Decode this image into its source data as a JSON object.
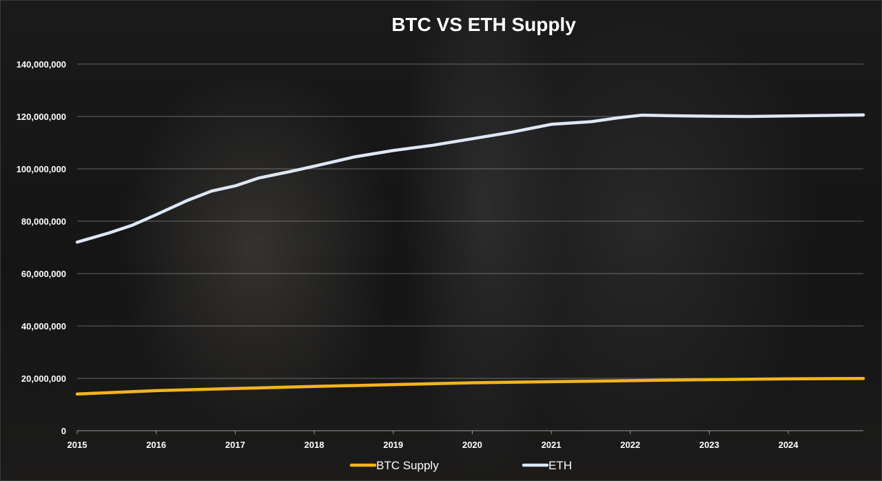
{
  "chart_data": {
    "type": "line",
    "title": "BTC VS ETH Supply",
    "xlabel": "",
    "ylabel": "",
    "xlim": [
      2015.0,
      2024.95
    ],
    "ylim": [
      0,
      140000000
    ],
    "grid": true,
    "legend_position": "bottom",
    "y_ticks": [
      "0",
      "20,000,000",
      "40,000,000",
      "60,000,000",
      "80,000,000",
      "100,000,000",
      "120,000,000",
      "140,000,000"
    ],
    "x_ticks": [
      "2015",
      "2016",
      "2017",
      "2018",
      "2019",
      "2020",
      "2021",
      "2022",
      "2023",
      "2024"
    ],
    "series": [
      {
        "name": "BTC Supply",
        "color": "#f5b41d",
        "x": [
          2015.0,
          2016.0,
          2017.0,
          2018.0,
          2019.0,
          2020.0,
          2021.0,
          2022.0,
          2023.0,
          2024.0,
          2024.95
        ],
        "y": [
          14000000,
          15300000,
          16100000,
          16900000,
          17600000,
          18300000,
          18700000,
          19100000,
          19500000,
          19800000,
          19950000
        ]
      },
      {
        "name": "ETH",
        "color": "#dde8f5",
        "x": [
          2015.0,
          2015.4,
          2015.7,
          2016.0,
          2016.4,
          2016.7,
          2017.0,
          2017.3,
          2017.7,
          2018.0,
          2018.5,
          2019.0,
          2019.5,
          2020.0,
          2020.5,
          2021.0,
          2021.5,
          2021.85,
          2022.15,
          2022.5,
          2023.0,
          2023.5,
          2024.0,
          2024.5,
          2024.95
        ],
        "y": [
          72000000,
          75500000,
          78500000,
          82500000,
          88000000,
          91500000,
          93500000,
          96500000,
          99000000,
          101000000,
          104500000,
          107000000,
          109000000,
          111500000,
          114000000,
          117000000,
          118000000,
          119500000,
          120500000,
          120300000,
          120100000,
          120000000,
          120200000,
          120400000,
          120600000
        ]
      }
    ]
  }
}
